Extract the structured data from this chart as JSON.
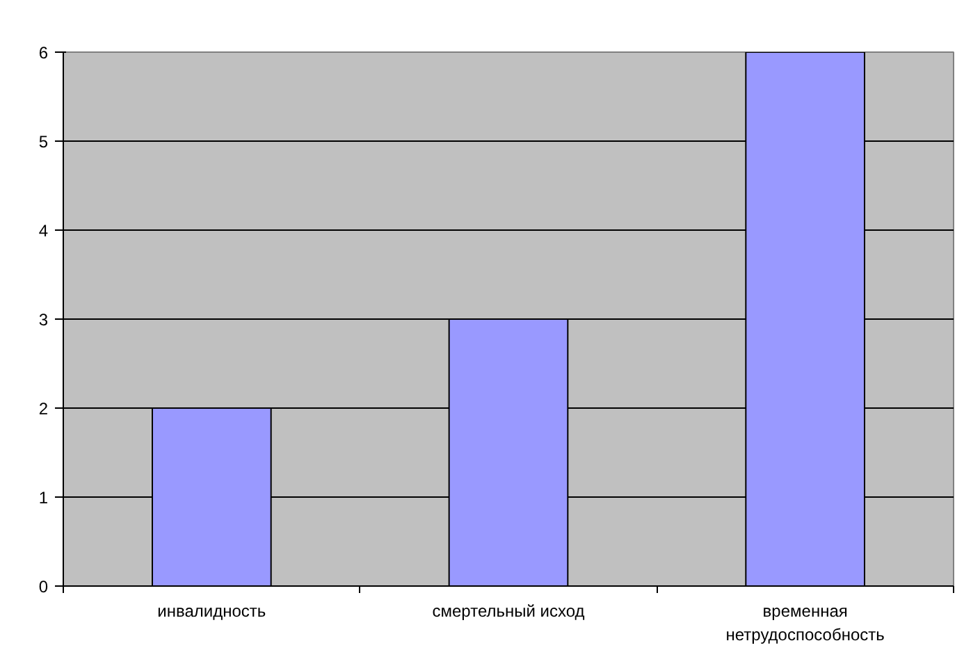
{
  "chart_data": {
    "type": "bar",
    "categories": [
      "инвалидность",
      "смертельный исход",
      "временная\nнетрудоспособность"
    ],
    "values": [
      2,
      3,
      6
    ],
    "color": "#9999ff",
    "ylim": [
      0,
      6
    ],
    "yticks": [
      0,
      1,
      2,
      3,
      4,
      5,
      6
    ],
    "grid": "y"
  }
}
